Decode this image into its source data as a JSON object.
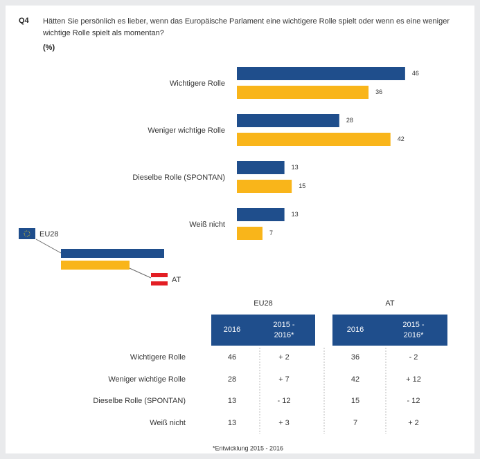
{
  "chart_data": {
    "type": "bar",
    "orientation": "horizontal",
    "label": "Q4",
    "title": "Hätten Sie persönlich es lieber, wenn das Europäische Parlament eine wichtigere Rolle spielt oder wenn es eine weniger wichtige Rolle spielt als momentan?",
    "unit": "(%)",
    "categories": [
      "Wichtigere Rolle",
      "Weniger wichtige Rolle",
      "Dieselbe Rolle (SPONTAN)",
      "Weiß nicht"
    ],
    "series": [
      {
        "name": "EU28",
        "color": "#1f4e8c",
        "values": [
          46,
          28,
          13,
          13
        ]
      },
      {
        "name": "AT",
        "color": "#f9b51a",
        "values": [
          36,
          42,
          15,
          7
        ]
      }
    ]
  },
  "table": {
    "groups": [
      "EU28",
      "AT"
    ],
    "columns": [
      "2016",
      "2015 - 2016*",
      "2016",
      "2015 - 2016*"
    ],
    "rows": [
      [
        "Wichtigere Rolle",
        "46",
        "+ 2",
        "36",
        "- 2"
      ],
      [
        "Weniger wichtige Rolle",
        "28",
        "+ 7",
        "42",
        "+ 12"
      ],
      [
        "Dieselbe Rolle (SPONTAN)",
        "13",
        "- 12",
        "15",
        "- 12"
      ],
      [
        "Weiß nicht",
        "13",
        "+ 3",
        "7",
        "+ 2"
      ]
    ],
    "footnote": "*Entwicklung 2015 - 2016"
  }
}
